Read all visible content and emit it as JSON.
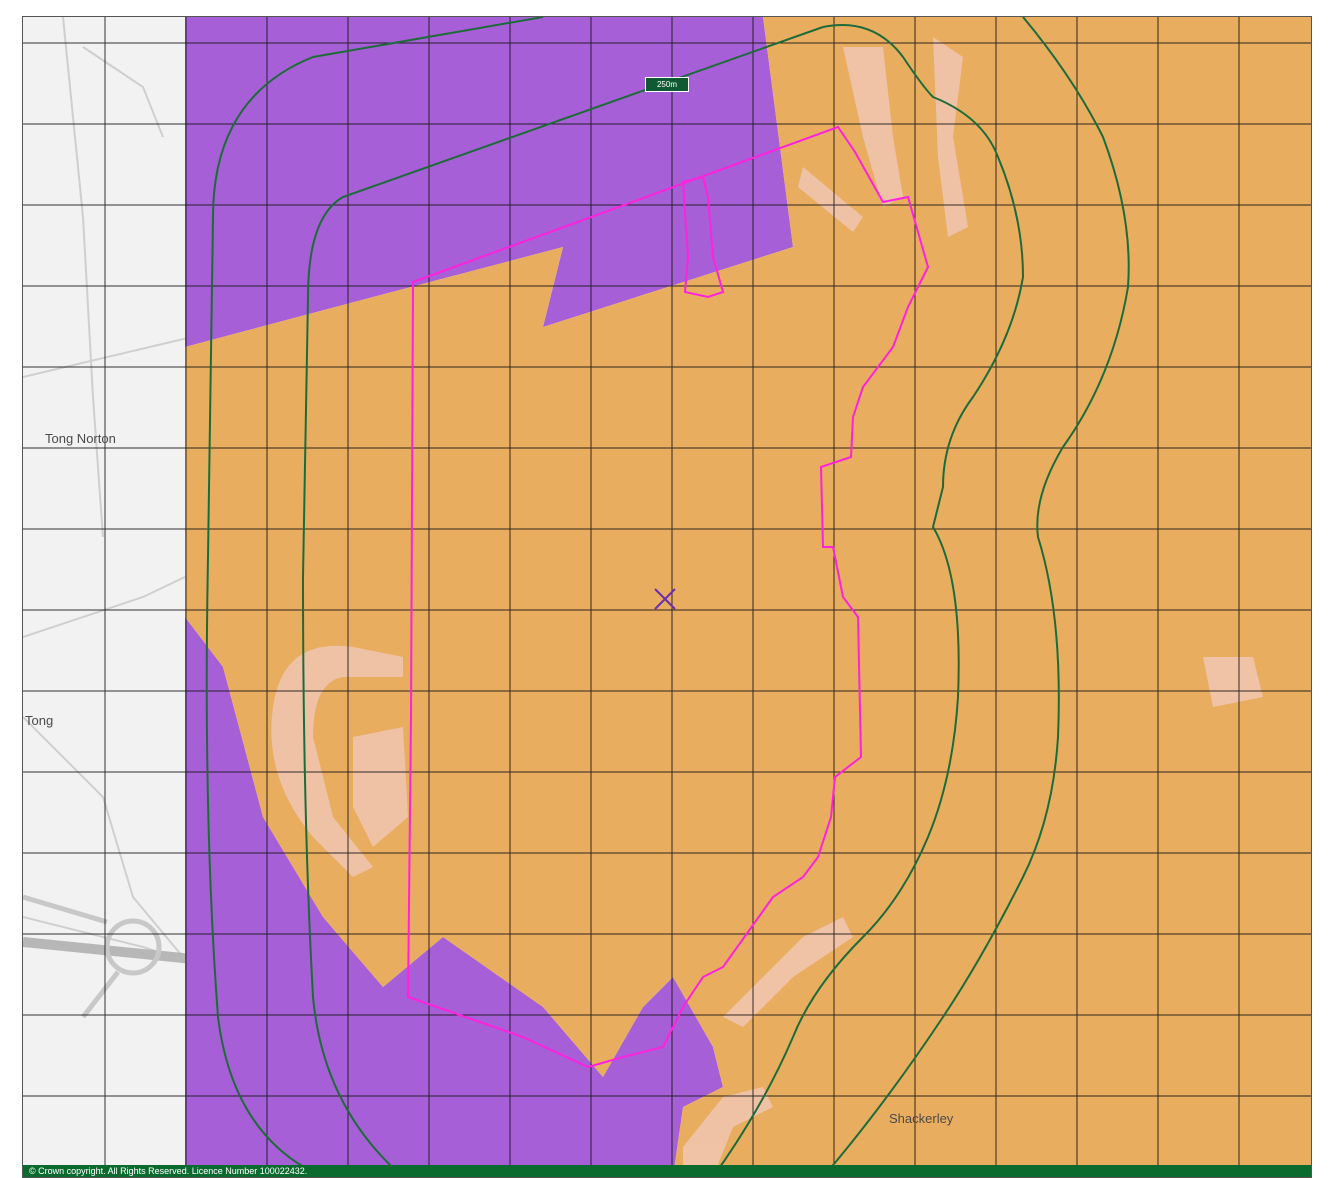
{
  "map": {
    "buffer_label": "250m",
    "copyright": "© Crown copyright. All Rights Reserved. Licence Number 100022432.",
    "center_marker": "x-marker",
    "colors": {
      "orange_zone": "#e9ad60",
      "purple_zone": "#a65fd6",
      "site_boundary": "#ff22dd",
      "buffer_lines": "#1e6b3a",
      "grid": "#111111",
      "light_patches": "#f1c6b3",
      "basemap": "#f2f2f2"
    },
    "place_labels": [
      {
        "id": "tong-norton",
        "text": "Tong Norton",
        "cls": "big"
      },
      {
        "id": "shackerley",
        "text": "Shackerley",
        "cls": "big"
      },
      {
        "id": "tong",
        "text": "Tong",
        "cls": "big"
      }
    ]
  }
}
